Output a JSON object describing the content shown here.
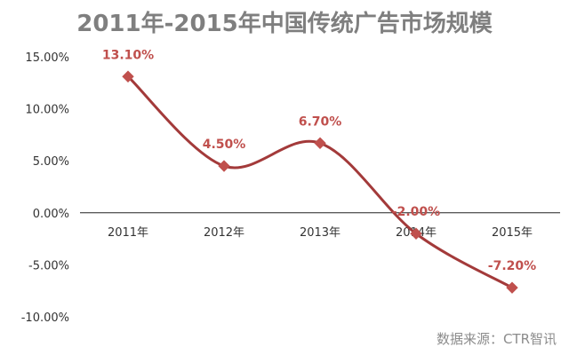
{
  "chart_data": {
    "type": "line",
    "title": "2011年-2015年中国传统广告市场规模",
    "categories": [
      "2011年",
      "2012年",
      "2013年",
      "2014年",
      "2015年"
    ],
    "series": [
      {
        "values": [
          13.1,
          4.5,
          6.7,
          -2.0,
          -7.2
        ],
        "labels": [
          "13.10%",
          "4.50%",
          "6.70%",
          "-2.00%",
          "-7.20%"
        ],
        "color": "#a33a3a",
        "marker": "diamond",
        "marker_color": "#c0504d",
        "smooth": true
      }
    ],
    "y_ticks": [
      "15.00%",
      "10.00%",
      "5.00%",
      "0.00%",
      "-5.00%",
      "-10.00%"
    ],
    "ylim": [
      -10,
      15
    ],
    "grid": false,
    "legend": "none"
  },
  "source_text": "数据来源：CTR智讯",
  "colors": {
    "line": "#a33a3a",
    "marker": "#c0504d",
    "data_label": "#c0504d",
    "title": "#7f7f7f",
    "axis_text": "#333333"
  }
}
